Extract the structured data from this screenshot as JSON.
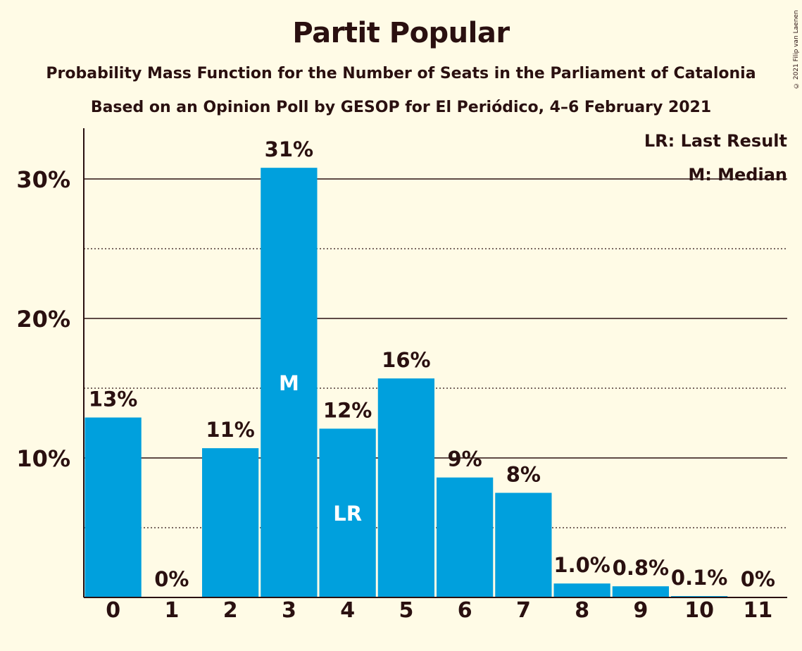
{
  "title": "Partit Popular",
  "subtitle": "Probability Mass Function for the Number of Seats in the Parliament of Catalonia",
  "subtitle2": "Based on an Opinion Poll by GESOP for El Periódico, 4–6 February 2021",
  "copyright": "© 2021 Filip van Laenen",
  "colors": {
    "bar": "#00a0dd",
    "background": "#fffbe6",
    "text": "#2a1010"
  },
  "chart_data": {
    "type": "bar",
    "categories": [
      "0",
      "1",
      "2",
      "3",
      "4",
      "5",
      "6",
      "7",
      "8",
      "9",
      "10",
      "11"
    ],
    "values": [
      12.9,
      0,
      10.7,
      30.8,
      12.1,
      15.7,
      8.6,
      7.5,
      1.0,
      0.8,
      0.1,
      0
    ],
    "value_labels": [
      "13%",
      "0%",
      "11%",
      "31%",
      "12%",
      "16%",
      "9%",
      "8%",
      "1.0%",
      "0.8%",
      "0.1%",
      "0%"
    ],
    "bar_markers": {
      "3": "M",
      "4": "LR"
    },
    "ylim": [
      0,
      33.5
    ],
    "yticks": [
      10,
      20,
      30
    ],
    "ytick_labels": [
      "10%",
      "20%",
      "30%"
    ],
    "minor_gridlines": [
      5,
      15,
      25
    ],
    "legend": [
      "LR: Last Result",
      "M: Median"
    ],
    "legend_position": "top-right",
    "xlabel": "",
    "ylabel": ""
  }
}
